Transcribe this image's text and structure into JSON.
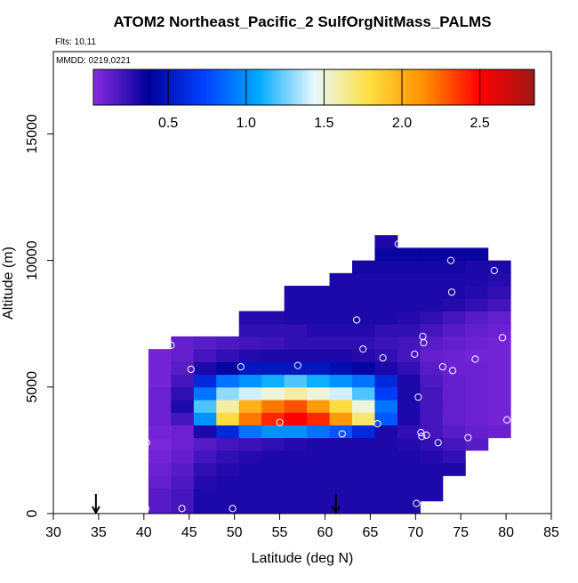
{
  "chart_data": {
    "type": "heatmap",
    "title": "ATOM2 Northeast_Pacific_2 SulfOrgNitMass_PALMS",
    "flights_label": "Flts: 10,11",
    "dates_label": "MMDD: 0219,0221",
    "x_label": "Latitude (deg N)",
    "y_label": "Altitude (m)",
    "xlim": [
      30,
      85
    ],
    "xticks": [
      30,
      35,
      40,
      45,
      50,
      55,
      60,
      65,
      70,
      75,
      80,
      85
    ],
    "ylim": [
      0,
      18250
    ],
    "yticks": [
      0,
      5000,
      10000,
      15000
    ],
    "clim": [
      0.02,
      2.85
    ],
    "cticks": [
      0.5,
      {
        "value": 1.0,
        "label": "1.0"
      },
      1.5,
      {
        "value": 2.0,
        "label": "2.0"
      },
      2.5
    ],
    "colors": [
      "#8a2be2",
      "#00009a",
      "#0040ff",
      "#00aaff",
      "#e8f8ff",
      "#ffe040",
      "#ff9000",
      "#ff0000",
      "#a01818"
    ],
    "x_edges": [
      40.5,
      43,
      45.5,
      48,
      50.5,
      53,
      55.5,
      58,
      60.5,
      63,
      65.5,
      68,
      70.5,
      73,
      75.5,
      78,
      80.5
    ],
    "y_edges": [
      0,
      500,
      1000,
      1500,
      2000,
      2500,
      3000,
      3500,
      4000,
      4500,
      5000,
      5500,
      6000,
      6500,
      7000,
      7500,
      8000,
      8500,
      9000,
      9500,
      10000,
      10500,
      11000
    ],
    "values": [
      [
        0.15,
        0.2,
        0.3,
        0.3,
        0.3,
        0.3,
        0.3,
        0.3,
        0.3,
        0.3,
        0.3,
        0.3,
        null,
        null,
        null,
        null
      ],
      [
        0.15,
        0.2,
        0.3,
        0.3,
        0.3,
        0.3,
        0.3,
        0.3,
        0.3,
        0.3,
        0.3,
        0.3,
        0.3,
        null,
        null,
        null
      ],
      [
        0.12,
        0.18,
        0.28,
        0.3,
        0.3,
        0.3,
        0.3,
        0.3,
        0.3,
        0.3,
        0.3,
        0.3,
        0.3,
        null,
        null,
        null
      ],
      [
        0.1,
        0.15,
        0.25,
        0.28,
        0.3,
        0.3,
        0.3,
        0.3,
        0.3,
        0.3,
        0.3,
        0.3,
        0.3,
        0.3,
        null,
        null
      ],
      [
        0.08,
        0.12,
        0.2,
        0.25,
        0.28,
        0.3,
        0.3,
        0.3,
        0.3,
        0.3,
        0.3,
        0.3,
        0.28,
        0.25,
        null,
        null
      ],
      [
        0.06,
        0.1,
        0.15,
        0.2,
        0.22,
        0.25,
        0.28,
        0.3,
        0.3,
        0.3,
        0.3,
        0.28,
        0.25,
        0.2,
        0.15,
        null
      ],
      [
        0.08,
        0.1,
        0.3,
        0.6,
        0.9,
        1.0,
        1.0,
        0.9,
        0.8,
        0.6,
        0.3,
        0.25,
        0.2,
        0.15,
        0.12,
        0.1
      ],
      [
        0.1,
        0.2,
        1.0,
        1.8,
        2.2,
        2.4,
        2.5,
        2.4,
        2.1,
        1.7,
        0.8,
        0.3,
        0.2,
        0.12,
        0.1,
        0.08
      ],
      [
        0.1,
        0.3,
        1.2,
        1.6,
        2.0,
        2.2,
        2.3,
        2.1,
        1.8,
        1.5,
        0.9,
        0.3,
        0.2,
        0.12,
        0.1,
        0.08
      ],
      [
        0.1,
        0.25,
        0.9,
        1.3,
        1.4,
        1.5,
        1.6,
        1.5,
        1.4,
        1.2,
        0.7,
        0.3,
        0.2,
        0.12,
        0.1,
        0.08
      ],
      [
        0.08,
        0.2,
        0.6,
        0.9,
        1.0,
        1.1,
        1.2,
        1.1,
        1.0,
        0.9,
        0.6,
        0.3,
        0.18,
        0.12,
        0.1,
        0.08
      ],
      [
        0.08,
        0.15,
        0.3,
        0.4,
        0.5,
        0.5,
        0.5,
        0.5,
        0.45,
        0.4,
        0.3,
        0.25,
        0.15,
        0.1,
        0.1,
        0.08
      ],
      [
        0.08,
        0.12,
        0.2,
        0.25,
        0.28,
        0.3,
        0.3,
        0.3,
        0.3,
        0.28,
        0.25,
        0.2,
        0.12,
        0.1,
        0.08,
        0.08
      ],
      [
        null,
        0.12,
        0.15,
        0.18,
        0.2,
        0.22,
        0.25,
        0.25,
        0.25,
        0.25,
        0.22,
        0.2,
        0.15,
        0.12,
        0.1,
        0.08
      ],
      [
        null,
        null,
        null,
        null,
        0.25,
        0.25,
        0.25,
        0.28,
        0.28,
        0.28,
        0.25,
        0.25,
        0.2,
        0.15,
        0.12,
        0.1
      ],
      [
        null,
        null,
        null,
        null,
        0.28,
        0.28,
        0.3,
        0.3,
        0.3,
        0.3,
        0.3,
        0.28,
        0.25,
        0.2,
        0.15,
        0.12
      ],
      [
        null,
        null,
        null,
        null,
        null,
        null,
        0.3,
        0.3,
        0.3,
        0.3,
        0.3,
        0.3,
        0.3,
        0.28,
        0.25,
        0.2
      ],
      [
        null,
        null,
        null,
        null,
        null,
        null,
        0.3,
        0.3,
        0.3,
        0.3,
        0.3,
        0.3,
        0.3,
        0.3,
        0.28,
        0.25
      ],
      [
        null,
        null,
        null,
        null,
        null,
        null,
        null,
        null,
        0.3,
        0.3,
        0.3,
        0.3,
        0.3,
        0.3,
        0.3,
        0.28
      ],
      [
        null,
        null,
        null,
        null,
        null,
        null,
        null,
        null,
        null,
        0.32,
        0.32,
        0.32,
        0.32,
        0.32,
        0.3,
        0.3
      ],
      [
        null,
        null,
        null,
        null,
        null,
        null,
        null,
        null,
        null,
        null,
        0.35,
        0.35,
        0.35,
        0.35,
        0.35,
        null
      ],
      [
        null,
        null,
        null,
        null,
        null,
        null,
        null,
        null,
        null,
        null,
        0.3,
        null,
        null,
        null,
        null,
        null
      ]
    ],
    "points": {
      "color": "#ffffff",
      "x": [
        40.3,
        40.2,
        43,
        44.2,
        45.2,
        49.8,
        50.7,
        55,
        57,
        61.9,
        63.5,
        64.2,
        65.8,
        66.4,
        68.1,
        69.9,
        70.1,
        70.3,
        70.6,
        70.8,
        70.9,
        70.7,
        71.2,
        71.3,
        72.5,
        73,
        73.9,
        74,
        74.1,
        75.8,
        76.6,
        78.7,
        79.6,
        80.1
      ],
      "y": [
        2800,
        200,
        6650,
        200,
        5700,
        200,
        5800,
        3600,
        5850,
        3150,
        7650,
        6500,
        3550,
        6150,
        10650,
        6300,
        400,
        4600,
        3200,
        7000,
        6750,
        3050,
        3100,
        100,
        2800,
        5800,
        10000,
        8750,
        5650,
        3000,
        6100,
        9600,
        6950,
        3700
      ]
    },
    "arrows_x": [
      34.7,
      61.2
    ]
  }
}
